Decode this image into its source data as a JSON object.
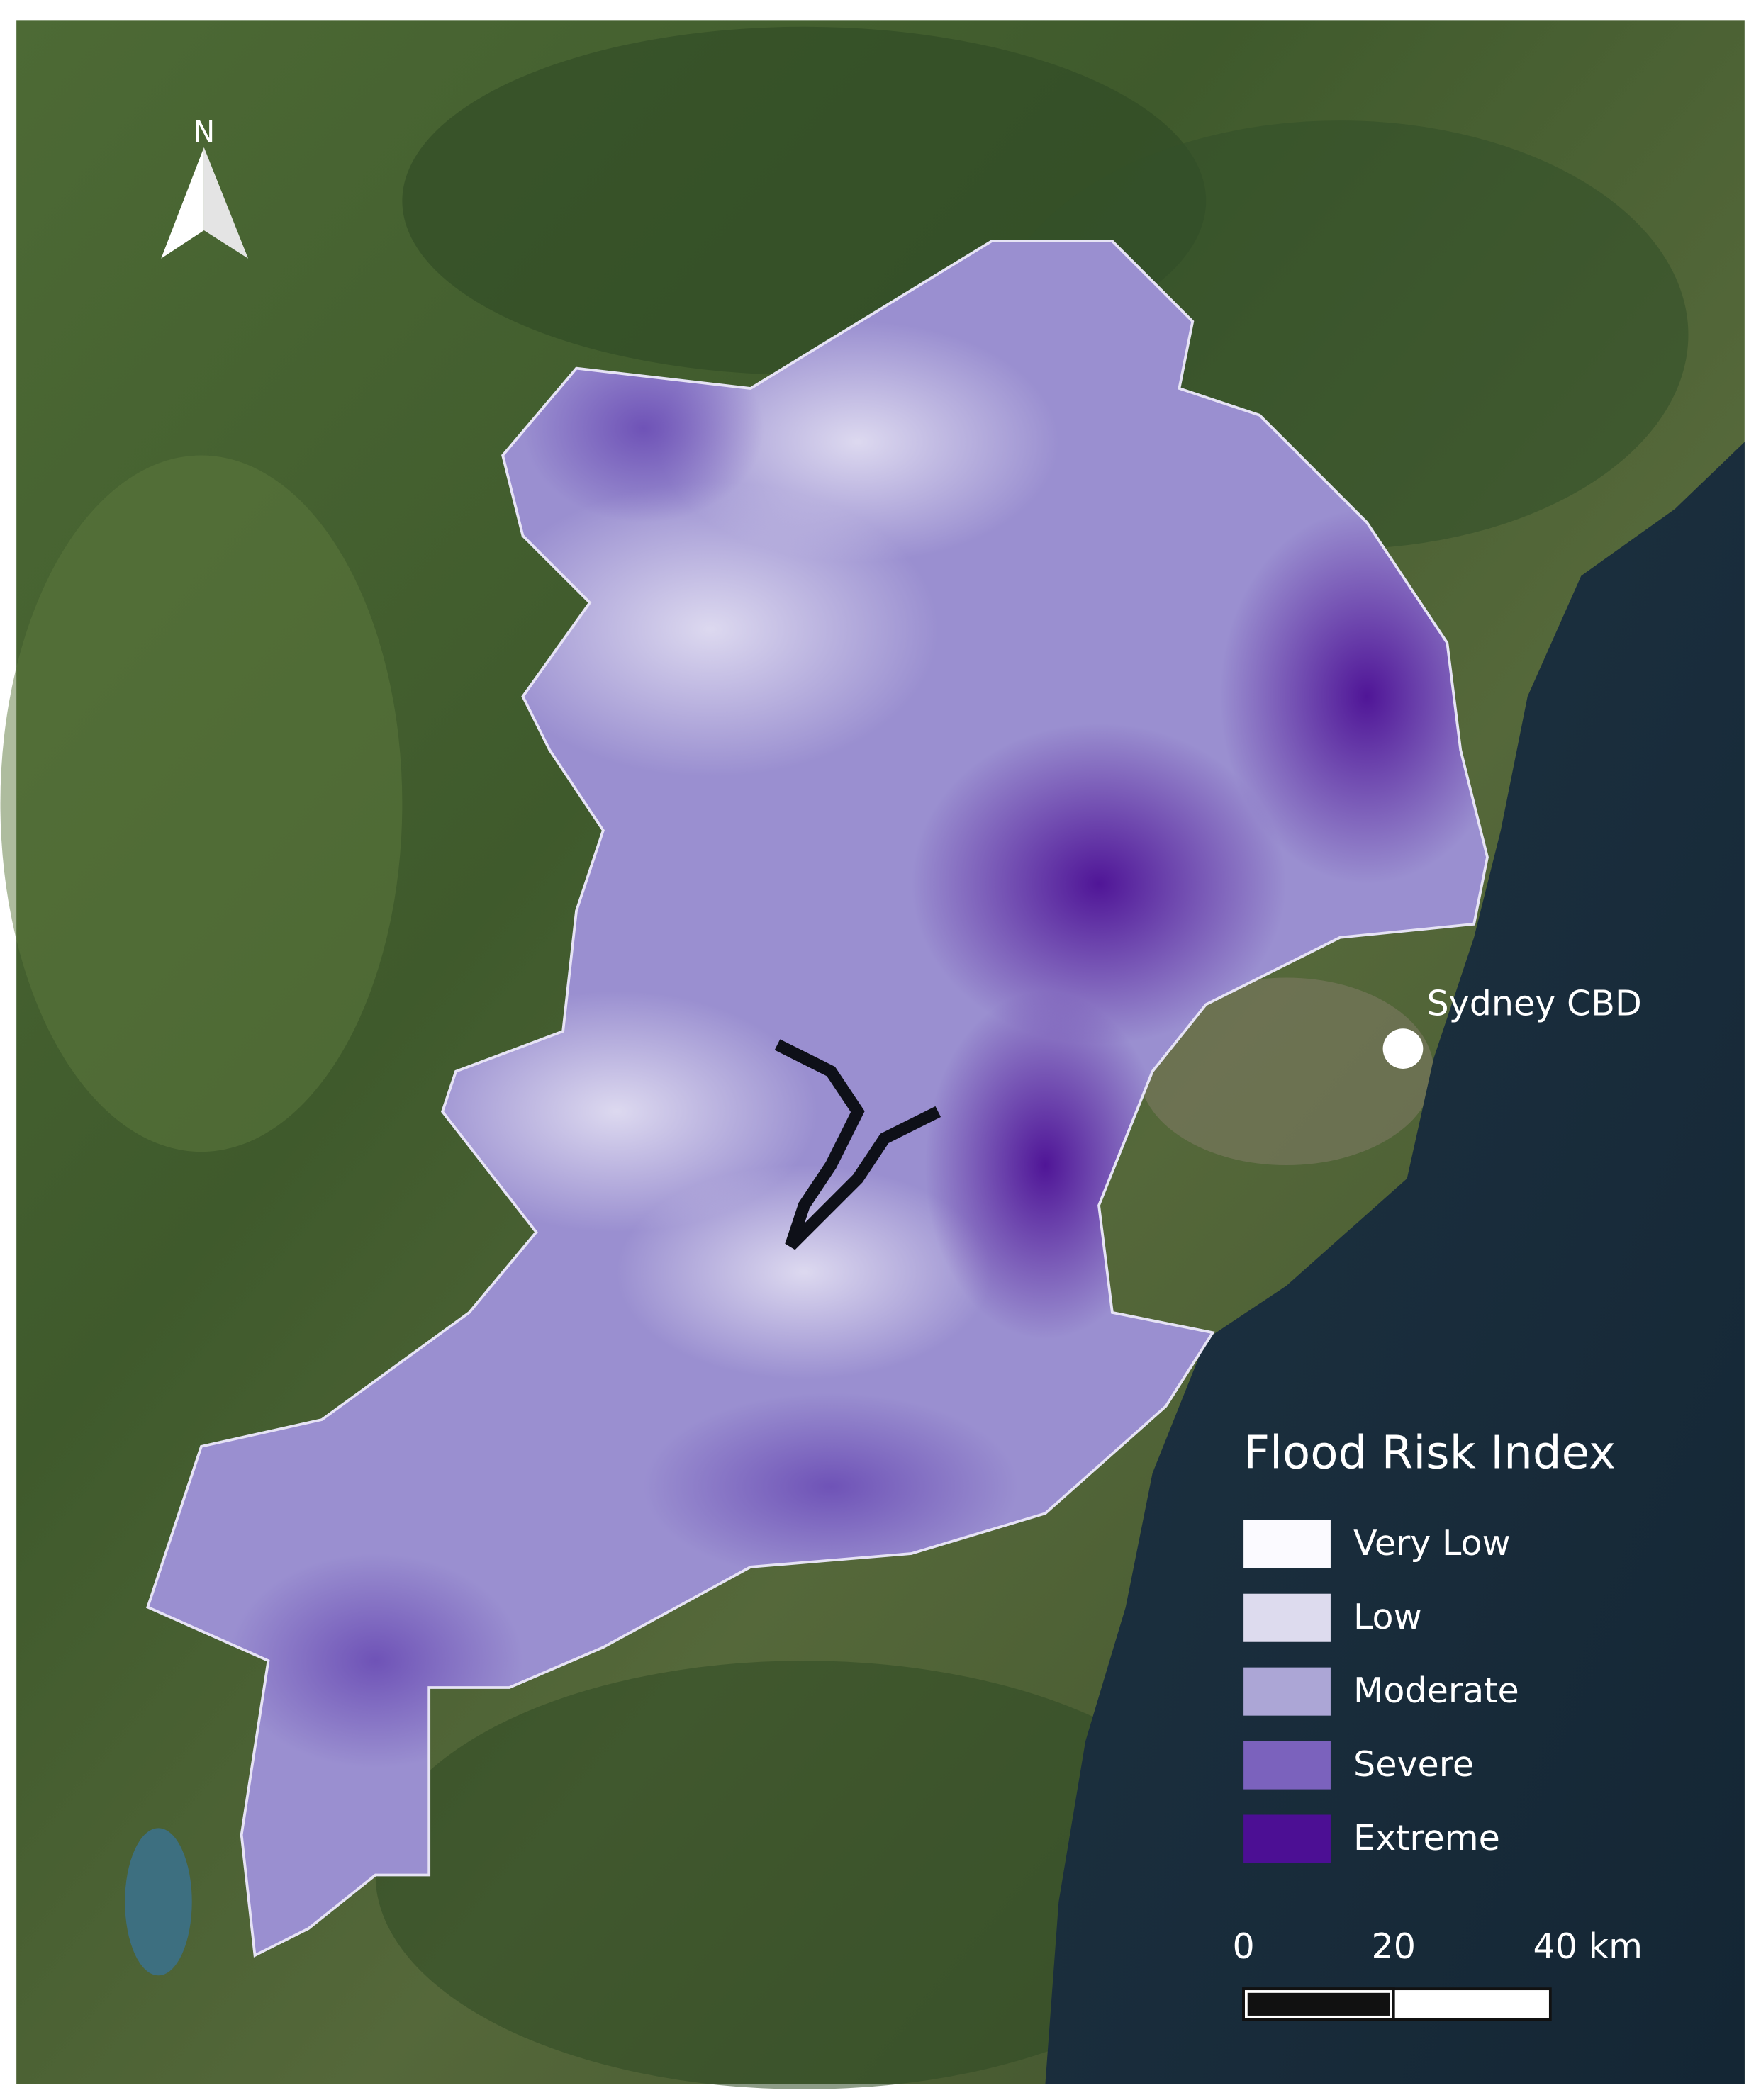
{
  "map": {
    "north_label": "N",
    "city_label": "Sydney CBD",
    "legend": {
      "title": "Flood Risk Index",
      "items": [
        {
          "label": "Very Low",
          "color": "#fbfaff"
        },
        {
          "label": "Low",
          "color": "#dddbee"
        },
        {
          "label": "Moderate",
          "color": "#aca6d6"
        },
        {
          "label": "Severe",
          "color": "#7b62bd"
        },
        {
          "label": "Extreme",
          "color": "#4c0f94"
        }
      ]
    },
    "scale_bar": {
      "labels": [
        "0",
        "20",
        "40 km"
      ]
    }
  }
}
